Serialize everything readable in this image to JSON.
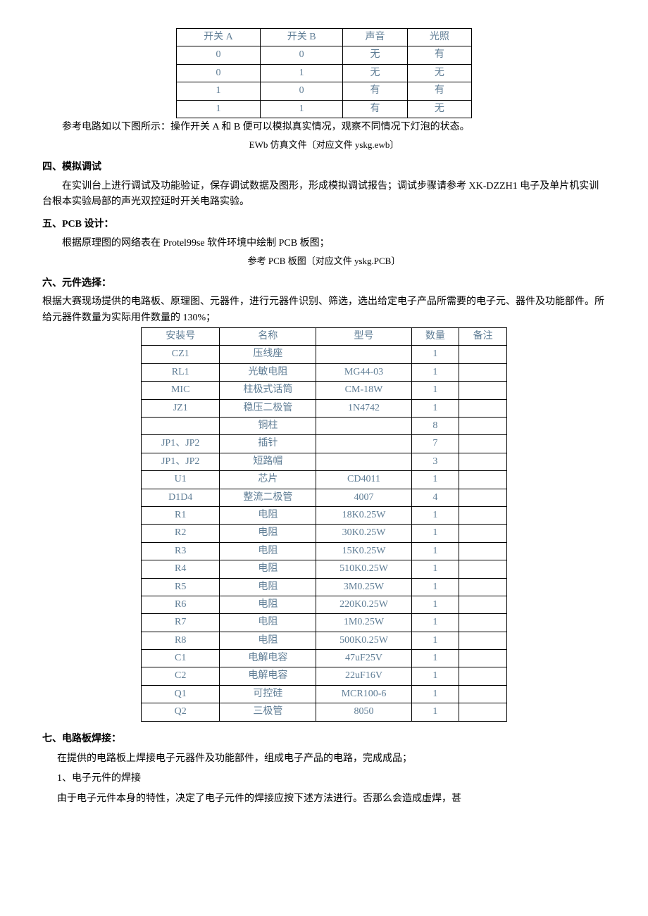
{
  "switch_table": {
    "headers": [
      "开关 A",
      "开关 B",
      "声音",
      "光照"
    ],
    "rows": [
      [
        "0",
        "0",
        "无",
        "有"
      ],
      [
        "0",
        "1",
        "无",
        "无"
      ],
      [
        "1",
        "0",
        "有",
        "有"
      ],
      [
        "1",
        "1",
        "有",
        "无"
      ]
    ]
  },
  "p1": "参考电路如以下图所示：操作开关 A 和 B 便可以模拟真实情况，观察不同情况下灯泡的状态。",
  "p2": "EWb 仿真文件〔对应文件 yskg.ewb〕",
  "sec4_title": "四、模拟调试",
  "sec4_body": "在实训台上进行调试及功能验证，保存调试数据及图形，形成模拟调试报告；调试步骤请参考 XK-DZZH1 电子及单片机实训台根本实验局部的声光双控延时开关电路实验。",
  "sec5_title": "五、PCB 设计：",
  "sec5_body": "根据原理图的网络表在 Protel99se 软件环境中绘制 PCB 板图；",
  "sec5_caption": "参考 PCB 板图〔对应文件 yskg.PCB〕",
  "sec6_title": "六、元件选择：",
  "sec6_body": "根据大赛现场提供的电路板、原理图、元器件，进行元器件识别、筛选，选出给定电子产品所需要的电子元、器件及功能部件。所给元器件数量为实际用件数量的 130%；",
  "bom_table": {
    "headers": [
      "安装号",
      "名称",
      "型号",
      "数量",
      "备注"
    ],
    "rows": [
      [
        "CZ1",
        "压线座",
        "",
        "1",
        ""
      ],
      [
        "RL1",
        "光敏电阻",
        "MG44-03",
        "1",
        ""
      ],
      [
        "MIC",
        "柱极式话筒",
        "CM-18W",
        "1",
        ""
      ],
      [
        "JZ1",
        "稳压二极管",
        "1N4742",
        "1",
        ""
      ],
      [
        "",
        "铜柱",
        "",
        "8",
        ""
      ],
      [
        "JP1、JP2",
        "插针",
        "",
        "7",
        ""
      ],
      [
        "JP1、JP2",
        "短路帽",
        "",
        "3",
        ""
      ],
      [
        "U1",
        "芯片",
        "CD4011",
        "1",
        ""
      ],
      [
        "D1D4",
        "整流二极管",
        "4007",
        "4",
        ""
      ],
      [
        "R1",
        "电阻",
        "18K0.25W",
        "1",
        ""
      ],
      [
        "R2",
        "电阻",
        "30K0.25W",
        "1",
        ""
      ],
      [
        "R3",
        "电阻",
        "15K0.25W",
        "1",
        ""
      ],
      [
        "R4",
        "电阻",
        "510K0.25W",
        "1",
        ""
      ],
      [
        "R5",
        "电阻",
        "3M0.25W",
        "1",
        ""
      ],
      [
        "R6",
        "电阻",
        "220K0.25W",
        "1",
        ""
      ],
      [
        "R7",
        "电阻",
        "1M0.25W",
        "1",
        ""
      ],
      [
        "R8",
        "电阻",
        "500K0.25W",
        "1",
        ""
      ],
      [
        "C1",
        "电解电容",
        "47uF25V",
        "1",
        ""
      ],
      [
        "C2",
        "电解电容",
        "22uF16V",
        "1",
        ""
      ],
      [
        "Q1",
        "可控硅",
        "MCR100-6",
        "1",
        ""
      ],
      [
        "Q2",
        "三极管",
        "8050",
        "1",
        ""
      ]
    ]
  },
  "sec7_title": "七、电路板焊接：",
  "sec7_body": "在提供的电路板上焊接电子元器件及功能部件，组成电子产品的电路，完成成品；",
  "sec7_sub1": "1、电子元件的焊接",
  "sec7_sub2": "由于电子元件本身的特性，决定了电子元件的焊接应按下述方法进行。否那么会造成虚焊，甚"
}
